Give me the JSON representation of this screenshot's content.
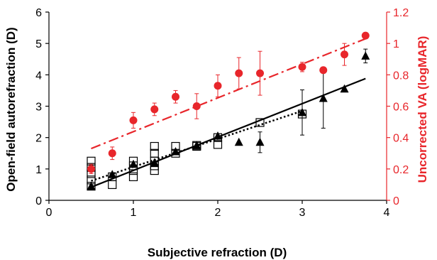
{
  "chart_data": {
    "type": "scatter",
    "xlabel": "Subjective refraction (D)",
    "ylabel": "Open-field autorefraction (D)",
    "y2label": "Uncorrected VA (logMAR)",
    "xlim": [
      0,
      4
    ],
    "ylim": [
      0,
      6
    ],
    "y2lim": [
      0,
      1.2
    ],
    "xticks": [
      "0",
      "1",
      "2",
      "3",
      "4"
    ],
    "yticks": [
      "0",
      "1",
      "2",
      "3",
      "4",
      "5",
      "6"
    ],
    "y2ticks": [
      "0",
      "0.2",
      "0.4",
      "0.6",
      "0.8",
      "1",
      "1.2"
    ],
    "grid": false,
    "colors": {
      "black": "#000000",
      "red": "#e8262b"
    },
    "series": [
      {
        "marker": "open-square",
        "axis": "left",
        "color": "#000000",
        "x": [
          0.5,
          0.5,
          0.5,
          0.5,
          0.5,
          0.75,
          0.75,
          1.0,
          1.0,
          1.0,
          1.0,
          1.25,
          1.25,
          1.25,
          1.25,
          1.25,
          1.5,
          1.5,
          1.75,
          1.75,
          2.0,
          2.0,
          2.5,
          3.0
        ],
        "y": [
          0.45,
          0.65,
          0.85,
          1.05,
          1.25,
          0.5,
          0.75,
          0.75,
          0.95,
          1.1,
          1.25,
          0.95,
          1.1,
          1.25,
          1.5,
          1.72,
          1.5,
          1.72,
          1.72,
          1.75,
          1.78,
          2.0,
          2.48,
          2.75
        ]
      },
      {
        "marker": "filled-triangle",
        "axis": "left",
        "color": "#000000",
        "x": [
          0.5,
          0.75,
          1.0,
          1.25,
          1.5,
          1.75,
          2.0,
          2.25,
          2.5,
          3.0,
          3.25,
          3.5,
          3.75
        ],
        "y": [
          0.45,
          0.82,
          1.15,
          1.2,
          1.55,
          1.75,
          2.05,
          1.85,
          1.85,
          2.8,
          3.25,
          3.55,
          4.6
        ],
        "err": [
          0,
          0,
          0,
          0,
          0,
          0,
          0,
          0,
          0.33,
          0.72,
          0.95,
          0,
          0.22
        ]
      },
      {
        "marker": "filled-circle",
        "axis": "right",
        "color": "#e8262b",
        "x": [
          0.5,
          0.75,
          1.0,
          1.25,
          1.5,
          1.75,
          2.0,
          2.25,
          2.5,
          3.0,
          3.25,
          3.5,
          3.75
        ],
        "y": [
          0.2,
          0.3,
          0.51,
          0.58,
          0.66,
          0.6,
          0.73,
          0.81,
          0.81,
          0.85,
          0.83,
          0.93,
          1.05
        ],
        "err": [
          0.03,
          0.04,
          0.05,
          0.04,
          0.04,
          0.08,
          0.07,
          0.1,
          0.14,
          0.03,
          0,
          0.07,
          0
        ]
      }
    ],
    "trendlines": [
      {
        "style": "solid",
        "axis": "left",
        "color": "#000000",
        "x": [
          0.5,
          3.75
        ],
        "y": [
          0.42,
          3.88
        ]
      },
      {
        "style": "dotted",
        "axis": "left",
        "color": "#000000",
        "x": [
          0.5,
          3.0
        ],
        "y": [
          0.62,
          2.85
        ]
      },
      {
        "style": "dash-dot",
        "axis": "right",
        "color": "#e8262b",
        "x": [
          0.5,
          3.75
        ],
        "y": [
          0.33,
          1.03
        ]
      }
    ]
  }
}
